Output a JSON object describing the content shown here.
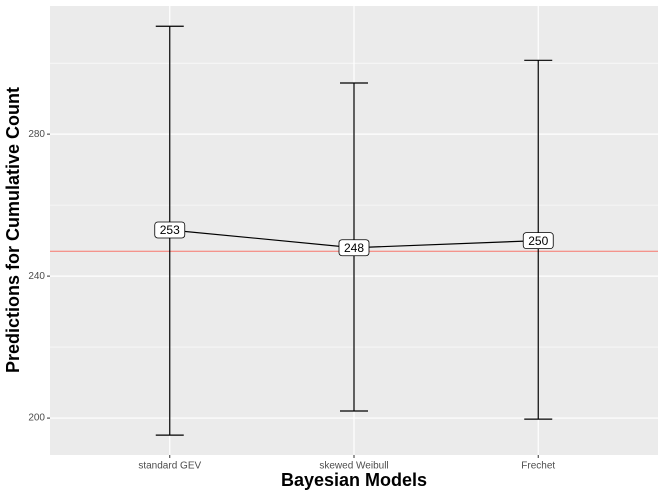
{
  "chart_data": {
    "type": "errorbar-line",
    "x_label": "Bayesian Models",
    "y_label": "Predictions for Cumulative Count",
    "categories": [
      "standard GEV",
      "skewed Weibull",
      "Frechet"
    ],
    "values": [
      253,
      248,
      250
    ],
    "lower": [
      195.2,
      202.0,
      199.7
    ],
    "upper": [
      310.4,
      294.4,
      300.8
    ],
    "color": "#000000",
    "hline": 247,
    "hline_color": "#f8766d",
    "ylim": [
      189.6,
      316.1
    ],
    "yticks": [
      200,
      240,
      280
    ],
    "y_minor_grid": [
      220,
      260,
      300
    ],
    "grid": true
  }
}
